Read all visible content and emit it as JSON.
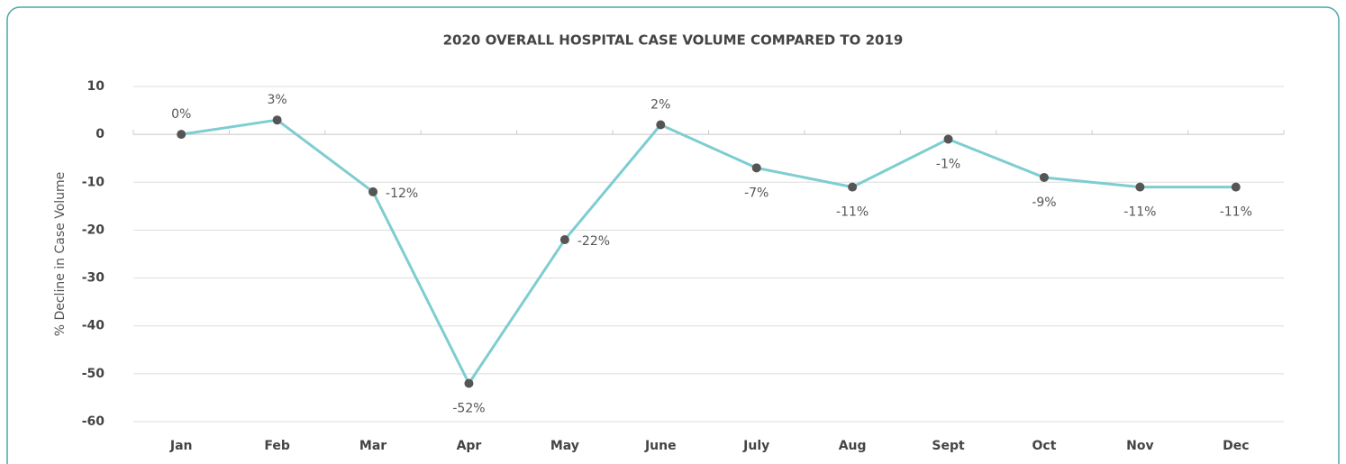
{
  "chart_data": {
    "type": "line",
    "title": "2020 OVERALL HOSPITAL CASE VOLUME COMPARED TO 2019",
    "ylabel": "% Decline in Case Volume",
    "categories": [
      "Jan",
      "Feb",
      "Mar",
      "Apr",
      "May",
      "June",
      "July",
      "Aug",
      "Sept",
      "Oct",
      "Nov",
      "Dec"
    ],
    "series": [
      {
        "name": "2020",
        "color": "#7ecdd1",
        "marker_color": "#555555",
        "values": [
          0,
          3,
          -12,
          -52,
          -22,
          2,
          -7,
          -11,
          -1,
          -9,
          -11,
          -11
        ],
        "value_labels": [
          "0%",
          "3%",
          "-12%",
          "-52%",
          "-22%",
          "2%",
          "-7%",
          "-11%",
          "-1%",
          "-9%",
          "-11%",
          "-11%"
        ]
      }
    ],
    "ylim": [
      -60,
      10
    ],
    "yticks": [
      10,
      0,
      -10,
      -20,
      -30,
      -40,
      -50,
      -60
    ],
    "grid": true
  }
}
